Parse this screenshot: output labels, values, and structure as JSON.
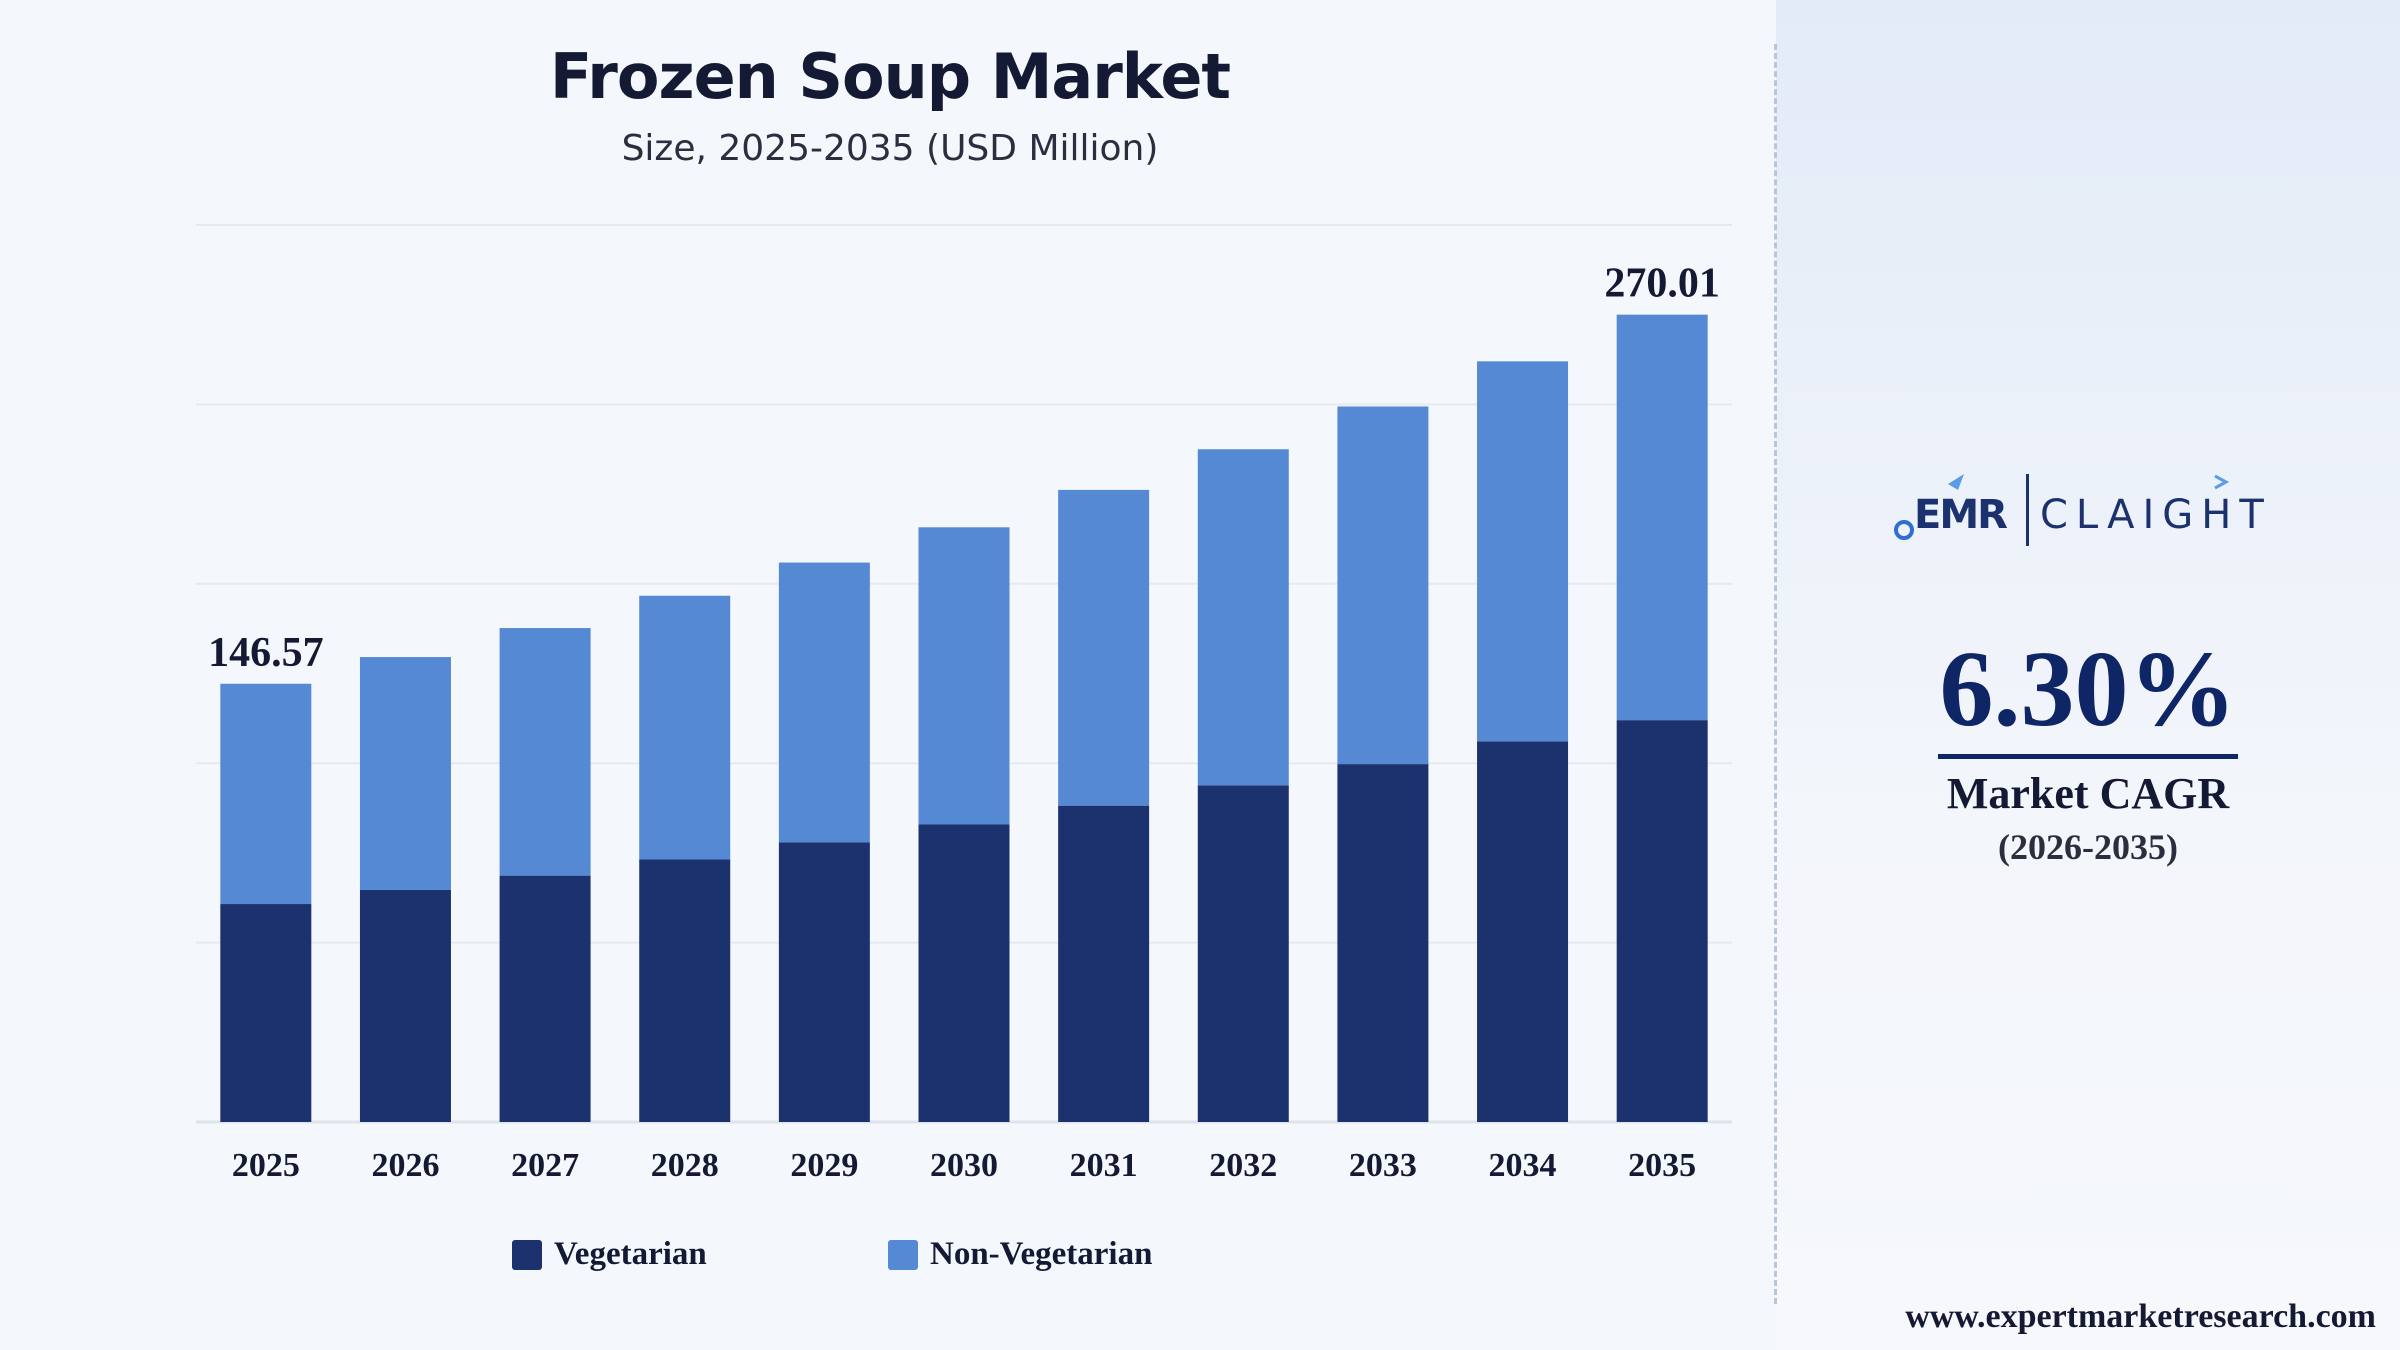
{
  "chart_data": {
    "type": "bar",
    "stacked": true,
    "title": "Frozen Soup Market",
    "subtitle": "Size, 2025-2035 (USD Million)",
    "categories": [
      "2025",
      "2026",
      "2027",
      "2028",
      "2029",
      "2030",
      "2031",
      "2032",
      "2033",
      "2034",
      "2035"
    ],
    "series": [
      {
        "name": "Vegetarian",
        "color": "#1c326e",
        "values": [
          72.9,
          77.6,
          82.4,
          87.8,
          93.5,
          99.5,
          105.8,
          112.6,
          119.7,
          127.3,
          134.4
        ]
      },
      {
        "name": "Non-Vegetarian",
        "color": "#5689d3",
        "values": [
          73.67,
          77.9,
          82.8,
          88.2,
          93.6,
          99.4,
          105.6,
          112.4,
          119.6,
          127.1,
          135.61
        ]
      }
    ],
    "totals": [
      146.57,
      155.5,
      165.2,
      176.0,
      187.1,
      198.9,
      211.4,
      225.0,
      239.3,
      254.4,
      270.01
    ],
    "data_labels": [
      {
        "category": "2025",
        "text": "146.57"
      },
      {
        "category": "2035",
        "text": "270.01"
      }
    ],
    "ylim": [
      0,
      300
    ],
    "grid": true,
    "legend_position": "bottom"
  },
  "sidebar": {
    "logo_left": "EMR",
    "logo_right": "CLAIGHT",
    "cagr_value": "6.30%",
    "cagr_label": "Market CAGR",
    "cagr_period": "(2026-2035)"
  },
  "footer": {
    "website": "www.expertmarketresearch.com"
  }
}
